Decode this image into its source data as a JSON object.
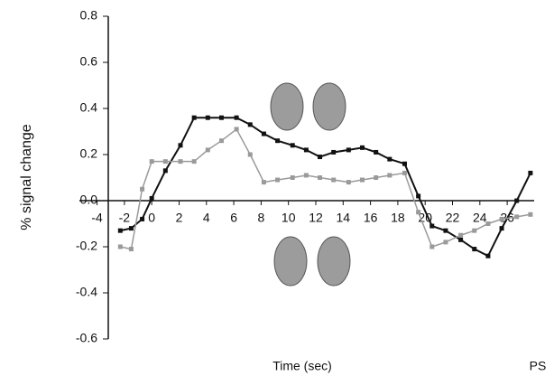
{
  "chart_data": {
    "type": "line",
    "x_label": "Time (sec)",
    "y_label": "% signal change",
    "annotation": "PS",
    "x": [
      -2.3,
      -1.5,
      -0.7,
      0,
      1.0,
      2.1,
      3.1,
      4.1,
      5.1,
      6.2,
      7.2,
      8.2,
      9.2,
      10.3,
      11.3,
      12.3,
      13.3,
      14.4,
      15.4,
      16.4,
      17.4,
      18.5,
      19.5,
      20.5,
      21.5,
      22.6,
      23.6,
      24.6,
      25.6,
      26.7,
      27.7
    ],
    "series": [
      {
        "color": "#111111",
        "values": [
          -0.13,
          -0.12,
          -0.08,
          0.01,
          0.13,
          0.24,
          0.36,
          0.36,
          0.36,
          0.36,
          0.33,
          0.29,
          0.26,
          0.24,
          0.22,
          0.19,
          0.21,
          0.22,
          0.23,
          0.21,
          0.18,
          0.16,
          0.02,
          -0.11,
          -0.13,
          -0.17,
          -0.21,
          -0.24,
          -0.12,
          0.0,
          0.12
        ]
      },
      {
        "color": "#9a9a9a",
        "values": [
          -0.2,
          -0.21,
          0.05,
          0.17,
          0.17,
          0.17,
          0.17,
          0.22,
          0.26,
          0.31,
          0.2,
          0.08,
          0.09,
          0.1,
          0.11,
          0.1,
          0.09,
          0.08,
          0.09,
          0.1,
          0.11,
          0.12,
          -0.05,
          -0.2,
          -0.18,
          -0.15,
          -0.13,
          -0.1,
          -0.08,
          -0.07,
          -0.06
        ]
      }
    ],
    "xlim": [
      -4.5,
      28.5
    ],
    "xticks": [
      -4,
      -2,
      0,
      2,
      4,
      6,
      8,
      10,
      12,
      14,
      16,
      18,
      20,
      22,
      24,
      26
    ],
    "ylim": [
      -0.6,
      0.8
    ],
    "yticks": [
      0.8,
      0.6,
      0.4,
      0.2,
      {
        "value": 0,
        "label": "0.0"
      },
      -0.2,
      -0.4,
      -0.6
    ]
  }
}
